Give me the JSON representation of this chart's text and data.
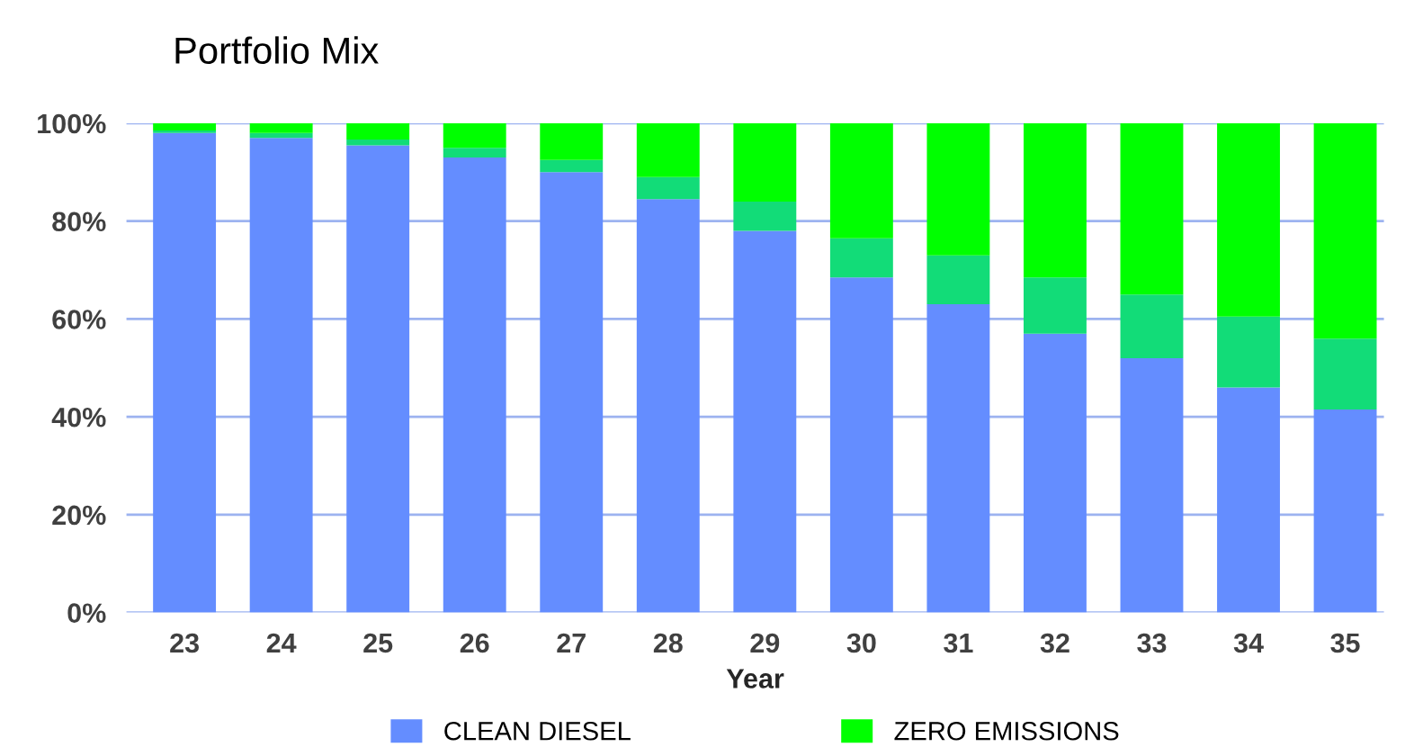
{
  "chart_data": {
    "type": "bar",
    "stacked": true,
    "title": "Portfolio Mix",
    "xlabel": "Year",
    "categories": [
      "23",
      "24",
      "25",
      "26",
      "27",
      "28",
      "29",
      "30",
      "31",
      "32",
      "33",
      "34",
      "35"
    ],
    "series": [
      {
        "name": "CLEAN DIESEL",
        "color": "#648dff",
        "values": [
          98,
          97,
          95.5,
          93,
          90,
          84.5,
          78,
          68.5,
          63,
          57,
          52,
          46,
          41.5
        ]
      },
      {
        "color": "#12dc78",
        "values": [
          0.5,
          1,
          1.2,
          2,
          2.5,
          4.5,
          6,
          8,
          10,
          11.5,
          13,
          14.5,
          14.5
        ]
      },
      {
        "name": "ZERO EMISSIONS",
        "color": "#00ff00",
        "values": [
          1.5,
          2,
          3.3,
          5,
          7.5,
          11,
          16,
          23.5,
          27,
          31.5,
          35,
          39.5,
          44
        ]
      }
    ],
    "ylim": [
      0,
      100
    ],
    "yticks": [
      {
        "value": 0,
        "label": "0%"
      },
      {
        "value": 20,
        "label": "20%"
      },
      {
        "value": 40,
        "label": "40%"
      },
      {
        "value": 60,
        "label": "60%"
      },
      {
        "value": 80,
        "label": "80%"
      },
      {
        "value": 100,
        "label": "100%"
      }
    ],
    "grid": "y",
    "legend": "bottom"
  }
}
